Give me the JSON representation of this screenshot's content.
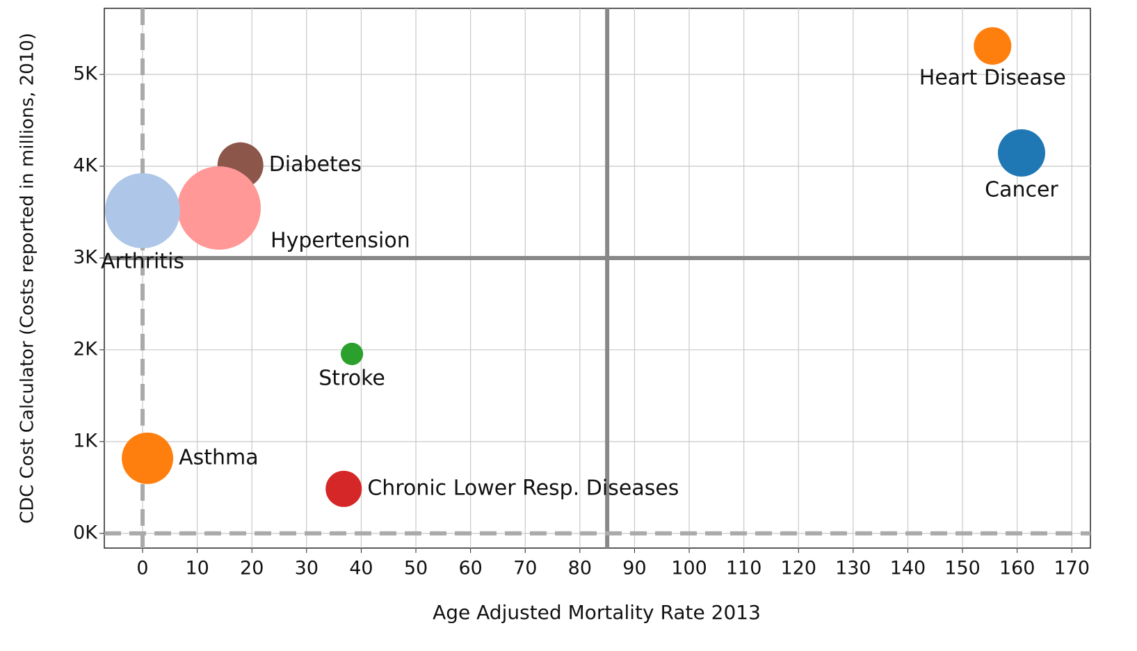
{
  "chart_data": {
    "type": "scatter",
    "x_label": "Age Adjusted Mortality Rate 2013",
    "y_label": "CDC Cost Calculator (Costs reported in millions, 2010)",
    "points": [
      {
        "name": "Heart Disease",
        "x": 155.5,
        "y": 5310,
        "size": 73,
        "color": "#ff7f0e"
      },
      {
        "name": "Cancer",
        "x": 160.8,
        "y": 4145,
        "size": 116,
        "color": "#1f77b4"
      },
      {
        "name": "Diabetes",
        "x": 17.9,
        "y": 4010,
        "size": 109,
        "color": "#8c564b"
      },
      {
        "name": "Hypertension",
        "x": 14,
        "y": 3545,
        "size": 360,
        "color": "#ff9896"
      },
      {
        "name": "Arthritis",
        "x": 0,
        "y": 3515,
        "size": 292,
        "color": "#aec7e8"
      },
      {
        "name": "Stroke",
        "x": 38.3,
        "y": 1955,
        "size": 26,
        "color": "#2ca02c"
      },
      {
        "name": "Asthma",
        "x": 0.9,
        "y": 818,
        "size": 137,
        "color": "#ff7f0e"
      },
      {
        "name": "Chronic Lower Resp. Diseases",
        "x": 36.8,
        "y": 485,
        "size": 68,
        "color": "#d62728"
      }
    ],
    "xlim": [
      -7,
      173.4
    ],
    "ylim": [
      -160,
      5720
    ],
    "xticks": [
      0,
      10,
      20,
      30,
      40,
      50,
      60,
      70,
      80,
      90,
      100,
      110,
      120,
      130,
      140,
      150,
      160,
      170
    ],
    "yticks": [
      {
        "value": 0,
        "label": "0K"
      },
      {
        "value": 1000,
        "label": "1K"
      },
      {
        "value": 2000,
        "label": "2K"
      },
      {
        "value": 3000,
        "label": "3K"
      },
      {
        "value": 4000,
        "label": "4K"
      },
      {
        "value": 5000,
        "label": "5K"
      }
    ],
    "grid": true,
    "vlines": [
      {
        "value": 0,
        "style": "dashed"
      },
      {
        "value": 85,
        "style": "solid"
      }
    ],
    "hlines": [
      {
        "value": 0,
        "style": "dashed"
      },
      {
        "value": 3000,
        "style": "solid"
      }
    ]
  }
}
